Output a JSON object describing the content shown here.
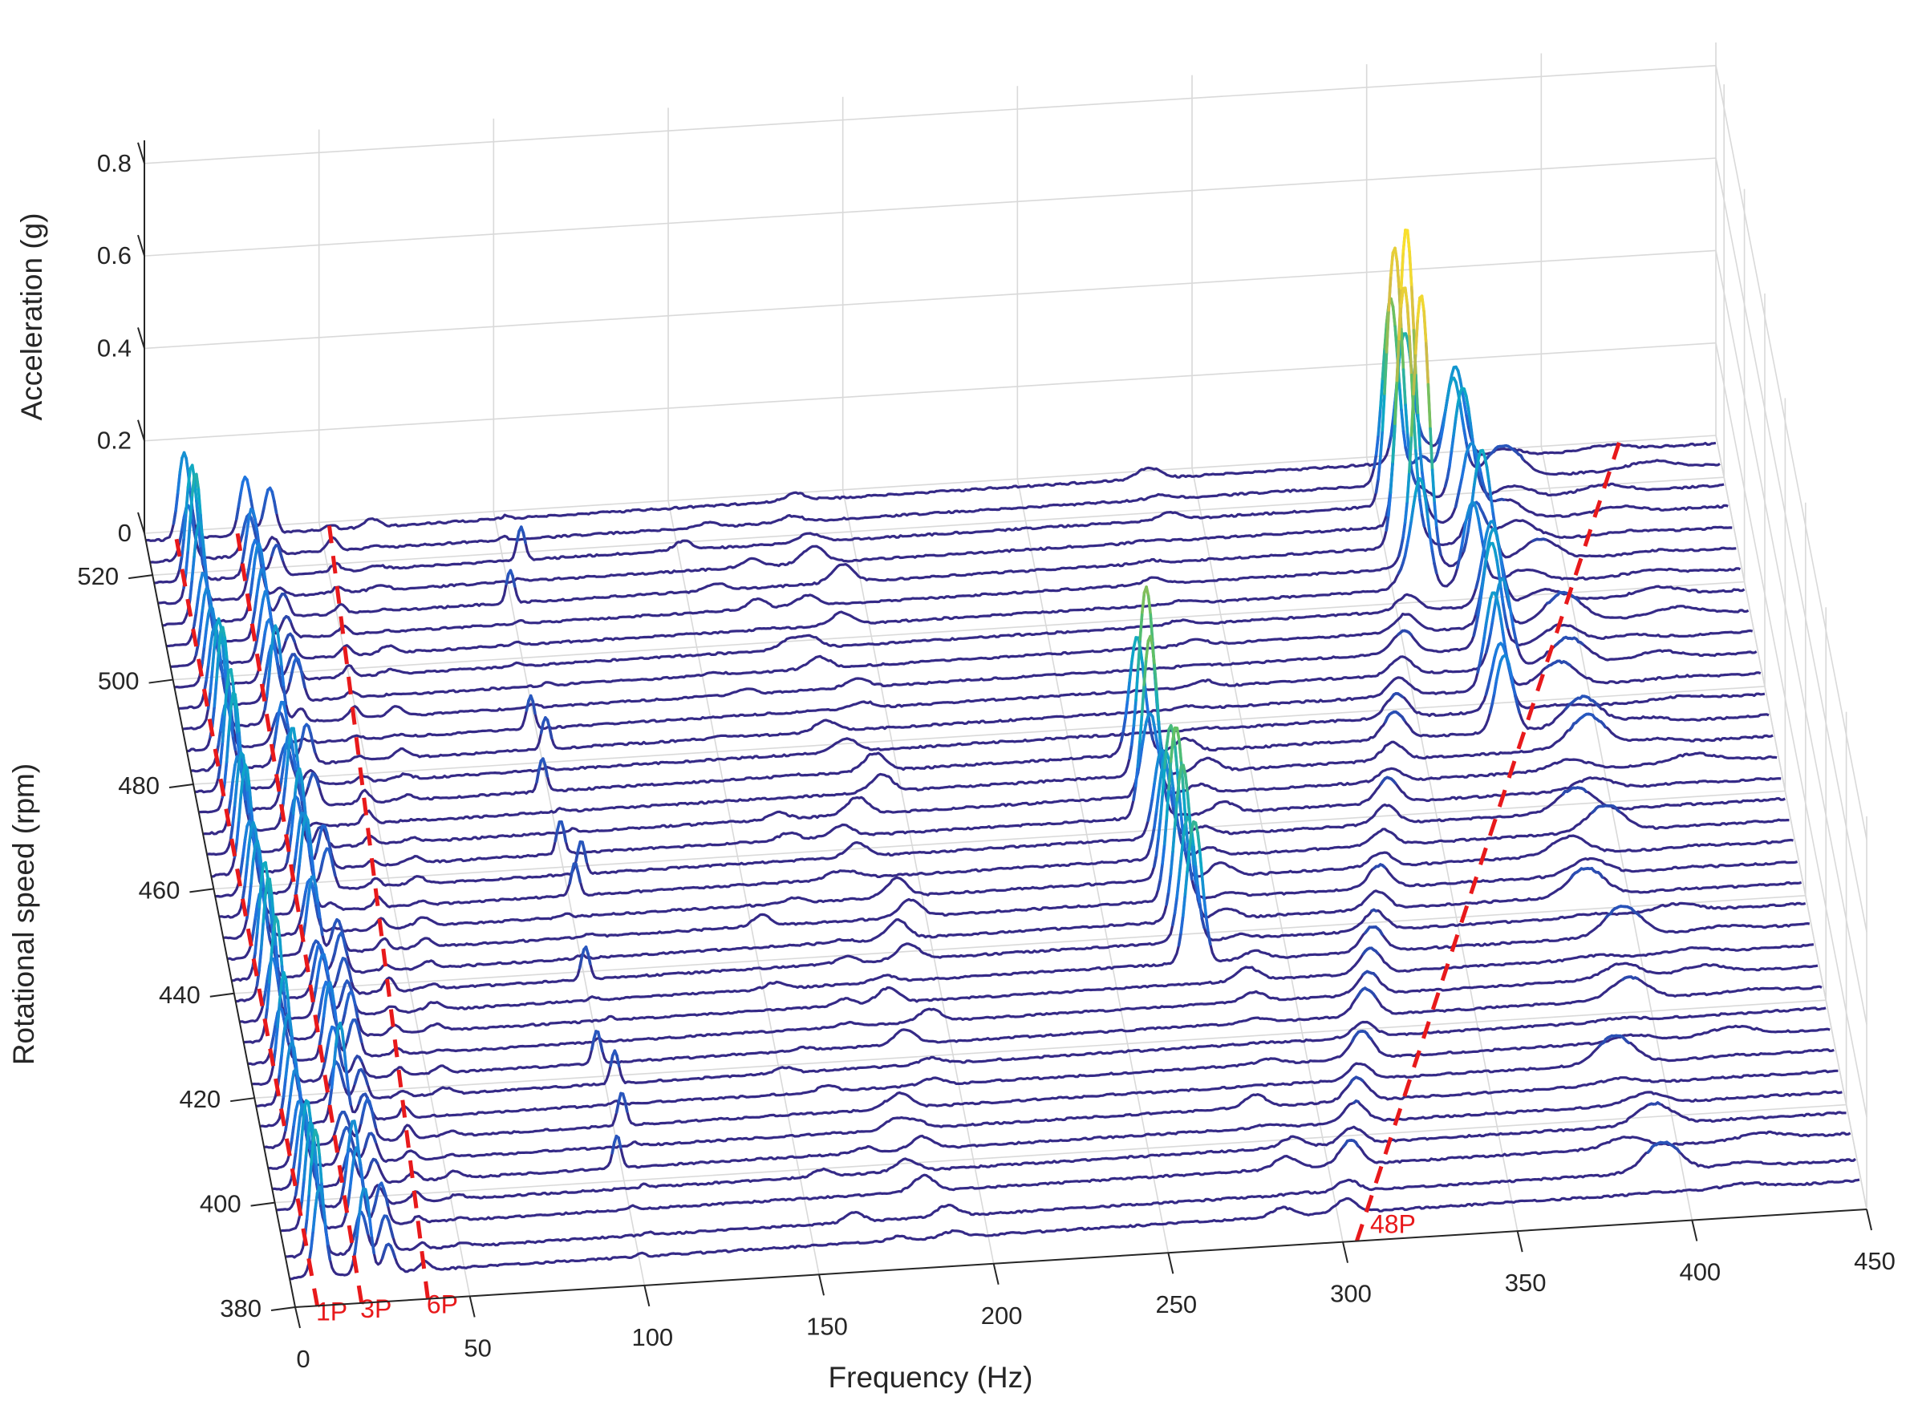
{
  "chart_data": {
    "type": "waterfall",
    "xlabel": "Frequency (Hz)",
    "ylabel": "Rotational speed (rpm)",
    "zlabel": "Acceleration (g)",
    "x_ticks": [
      0,
      50,
      100,
      150,
      200,
      250,
      300,
      350,
      400,
      450
    ],
    "y_ticks": [
      380,
      400,
      420,
      440,
      460,
      480,
      500,
      520
    ],
    "z_ticks": [
      0,
      0.2,
      0.4,
      0.6,
      0.8
    ],
    "xlim": [
      0,
      450
    ],
    "ylim": [
      380,
      528
    ],
    "zlim": [
      0,
      0.85
    ],
    "grid": true,
    "colormap": [
      "#352a87",
      "#1f73e0",
      "#0ca9c7",
      "#5bc165",
      "#d3bb45",
      "#f9e02c"
    ],
    "annotation_color": "#e8191b",
    "harmonic_lines": [
      {
        "label": "1P",
        "order": 1
      },
      {
        "label": "3P",
        "order": 3
      },
      {
        "label": "6P",
        "order": 6
      },
      {
        "label": "48P",
        "order": 48
      }
    ],
    "speed_rpm": [
      385,
      389,
      394,
      398,
      402,
      406,
      410,
      414,
      418,
      422,
      426,
      430,
      434,
      438,
      442,
      446,
      450,
      454,
      458,
      462,
      466,
      470,
      474,
      478,
      482,
      486,
      490,
      494,
      498,
      502,
      506,
      510,
      514,
      518,
      522,
      526
    ],
    "peak_components": [
      {
        "name": "1P",
        "freq_hz": 7.0,
        "amplitude_g": 0.28
      },
      {
        "name": "3P",
        "freq_hz": 21.0,
        "amplitude_g": 0.22
      },
      {
        "name": "6P",
        "freq_hz": 42.0,
        "amplitude_g": 0.03
      },
      {
        "name": "~100 Hz",
        "freq_hz": 100.0,
        "amplitude_g": 0.07
      },
      {
        "name": "~185 Hz",
        "freq_hz": 185.0,
        "amplitude_g": 0.04
      },
      {
        "name": "~270 Hz",
        "freq_hz": 270.0,
        "amplitude_g": 0.46
      },
      {
        "name": "48P",
        "freq_hz": 340.0,
        "amplitude_g": 0.25
      },
      {
        "name": "~360 Hz",
        "freq_hz": 360.0,
        "amplitude_g": 0.62
      },
      {
        "name": "~390 Hz",
        "freq_hz": 390.0,
        "amplitude_g": 0.12
      }
    ]
  }
}
